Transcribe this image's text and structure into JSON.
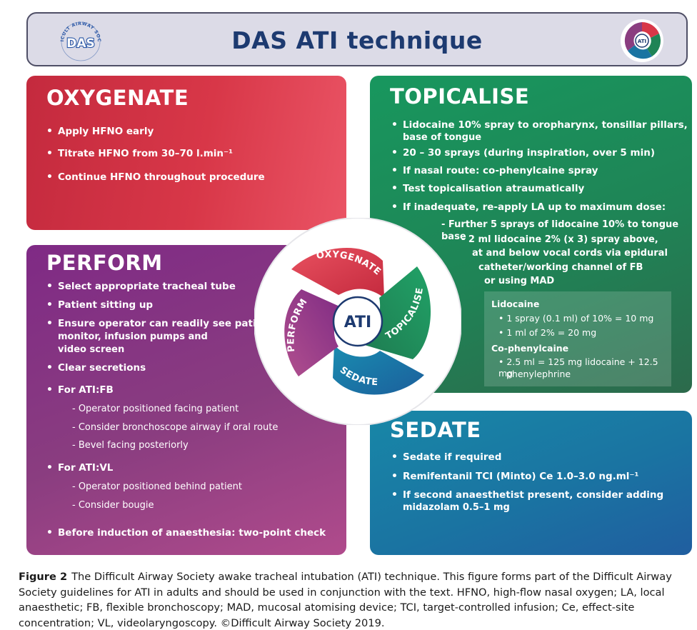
{
  "header": {
    "title": "DAS ATI technique",
    "das_logo_text": "DAS",
    "das_logo_ring_text": "DIFFICULT AIRWAY SOCIETY",
    "ati_logo_text": "ATI"
  },
  "colors": {
    "oxygenate": "#d83748",
    "topicalise": "#1f8456",
    "perform": "#8a3d80",
    "sedate": "#1a74a2",
    "header_bg": "#dcdbe7",
    "title_text": "#1d3a70"
  },
  "oxygenate": {
    "title": "OXYGENATE",
    "bullets": [
      "Apply HFNO early",
      "Titrate HFNO from 30–70 l.min⁻¹",
      "Continue HFNO throughout procedure"
    ]
  },
  "topicalise": {
    "title": "TOPICALISE",
    "bullets": [
      "Lidocaine 10% spray to oropharynx, tonsillar pillars,",
      "base of tongue",
      "20 – 30 sprays (during inspiration, over 5 min)",
      "If nasal route: co-phenylcaine spray",
      "Test topicalisation atraumatically",
      "If inadequate, re-apply LA up to maximum dose:"
    ],
    "sub_lines": [
      "- Further 5 sprays of lidocaine 10% to tongue base",
      "- 2 ml lidocaine 2% (x 3) spray above,",
      "at and below vocal cords via epidural",
      "catheter/working channel of FB",
      "or using MAD"
    ],
    "drug_box": {
      "lidocaine_head": "Lidocaine",
      "lidocaine_lines": [
        "• 1 spray (0.1 ml) of 10% = 10 mg",
        "• 1 ml of 2% = 20 mg"
      ],
      "cophenylcaine_head": "Co-phenylcaine",
      "cophenylcaine_lines": [
        "• 2.5 ml = 125 mg lidocaine + 12.5 mg",
        "phenylephrine"
      ]
    }
  },
  "perform": {
    "title": "PERFORM",
    "bullets": [
      "Select appropriate tracheal tube",
      "Patient sitting up",
      "Ensure operator can readily see patient",
      "monitor, infusion pumps and",
      "video screen",
      "Clear secretions",
      "For ATI:FB",
      "For ATI:VL",
      "Before induction of anaesthesia: two-point check"
    ],
    "fb_sub": [
      "- Operator positioned facing patient",
      "- Consider bronchoscope airway if oral route",
      "- Bevel facing posteriorly"
    ],
    "vl_sub": [
      "- Operator positioned behind patient",
      "- Consider bougie"
    ]
  },
  "sedate": {
    "title": "SEDATE",
    "bullets": [
      "Sedate if required",
      "Remifentanil TCI (Minto) Ce 1.0–3.0 ng.ml⁻¹",
      "If second anaesthetist present, consider adding",
      "midazolam 0.5–1 mg"
    ]
  },
  "center": {
    "label": "ATI",
    "oxygenate": "OXYGENATE",
    "topicalise": "TOPICALISE",
    "sedate": "SEDATE",
    "perform": "PERFORM"
  },
  "caption": {
    "label": "Figure 2",
    "text": "The Difficult Airway Society awake tracheal intubation (ATI) technique. This figure forms part of the Difficult Airway Society guidelines for ATI in adults and should be used in conjunction with the text. HFNO, high-flow nasal oxygen; LA, local anaesthetic; FB, flexible bronchoscopy; MAD, mucosal atomising device; TCI, target-controlled infusion; Ce, effect-site concentration; VL, videolaryngoscopy. ©Difficult Airway Society 2019."
  }
}
